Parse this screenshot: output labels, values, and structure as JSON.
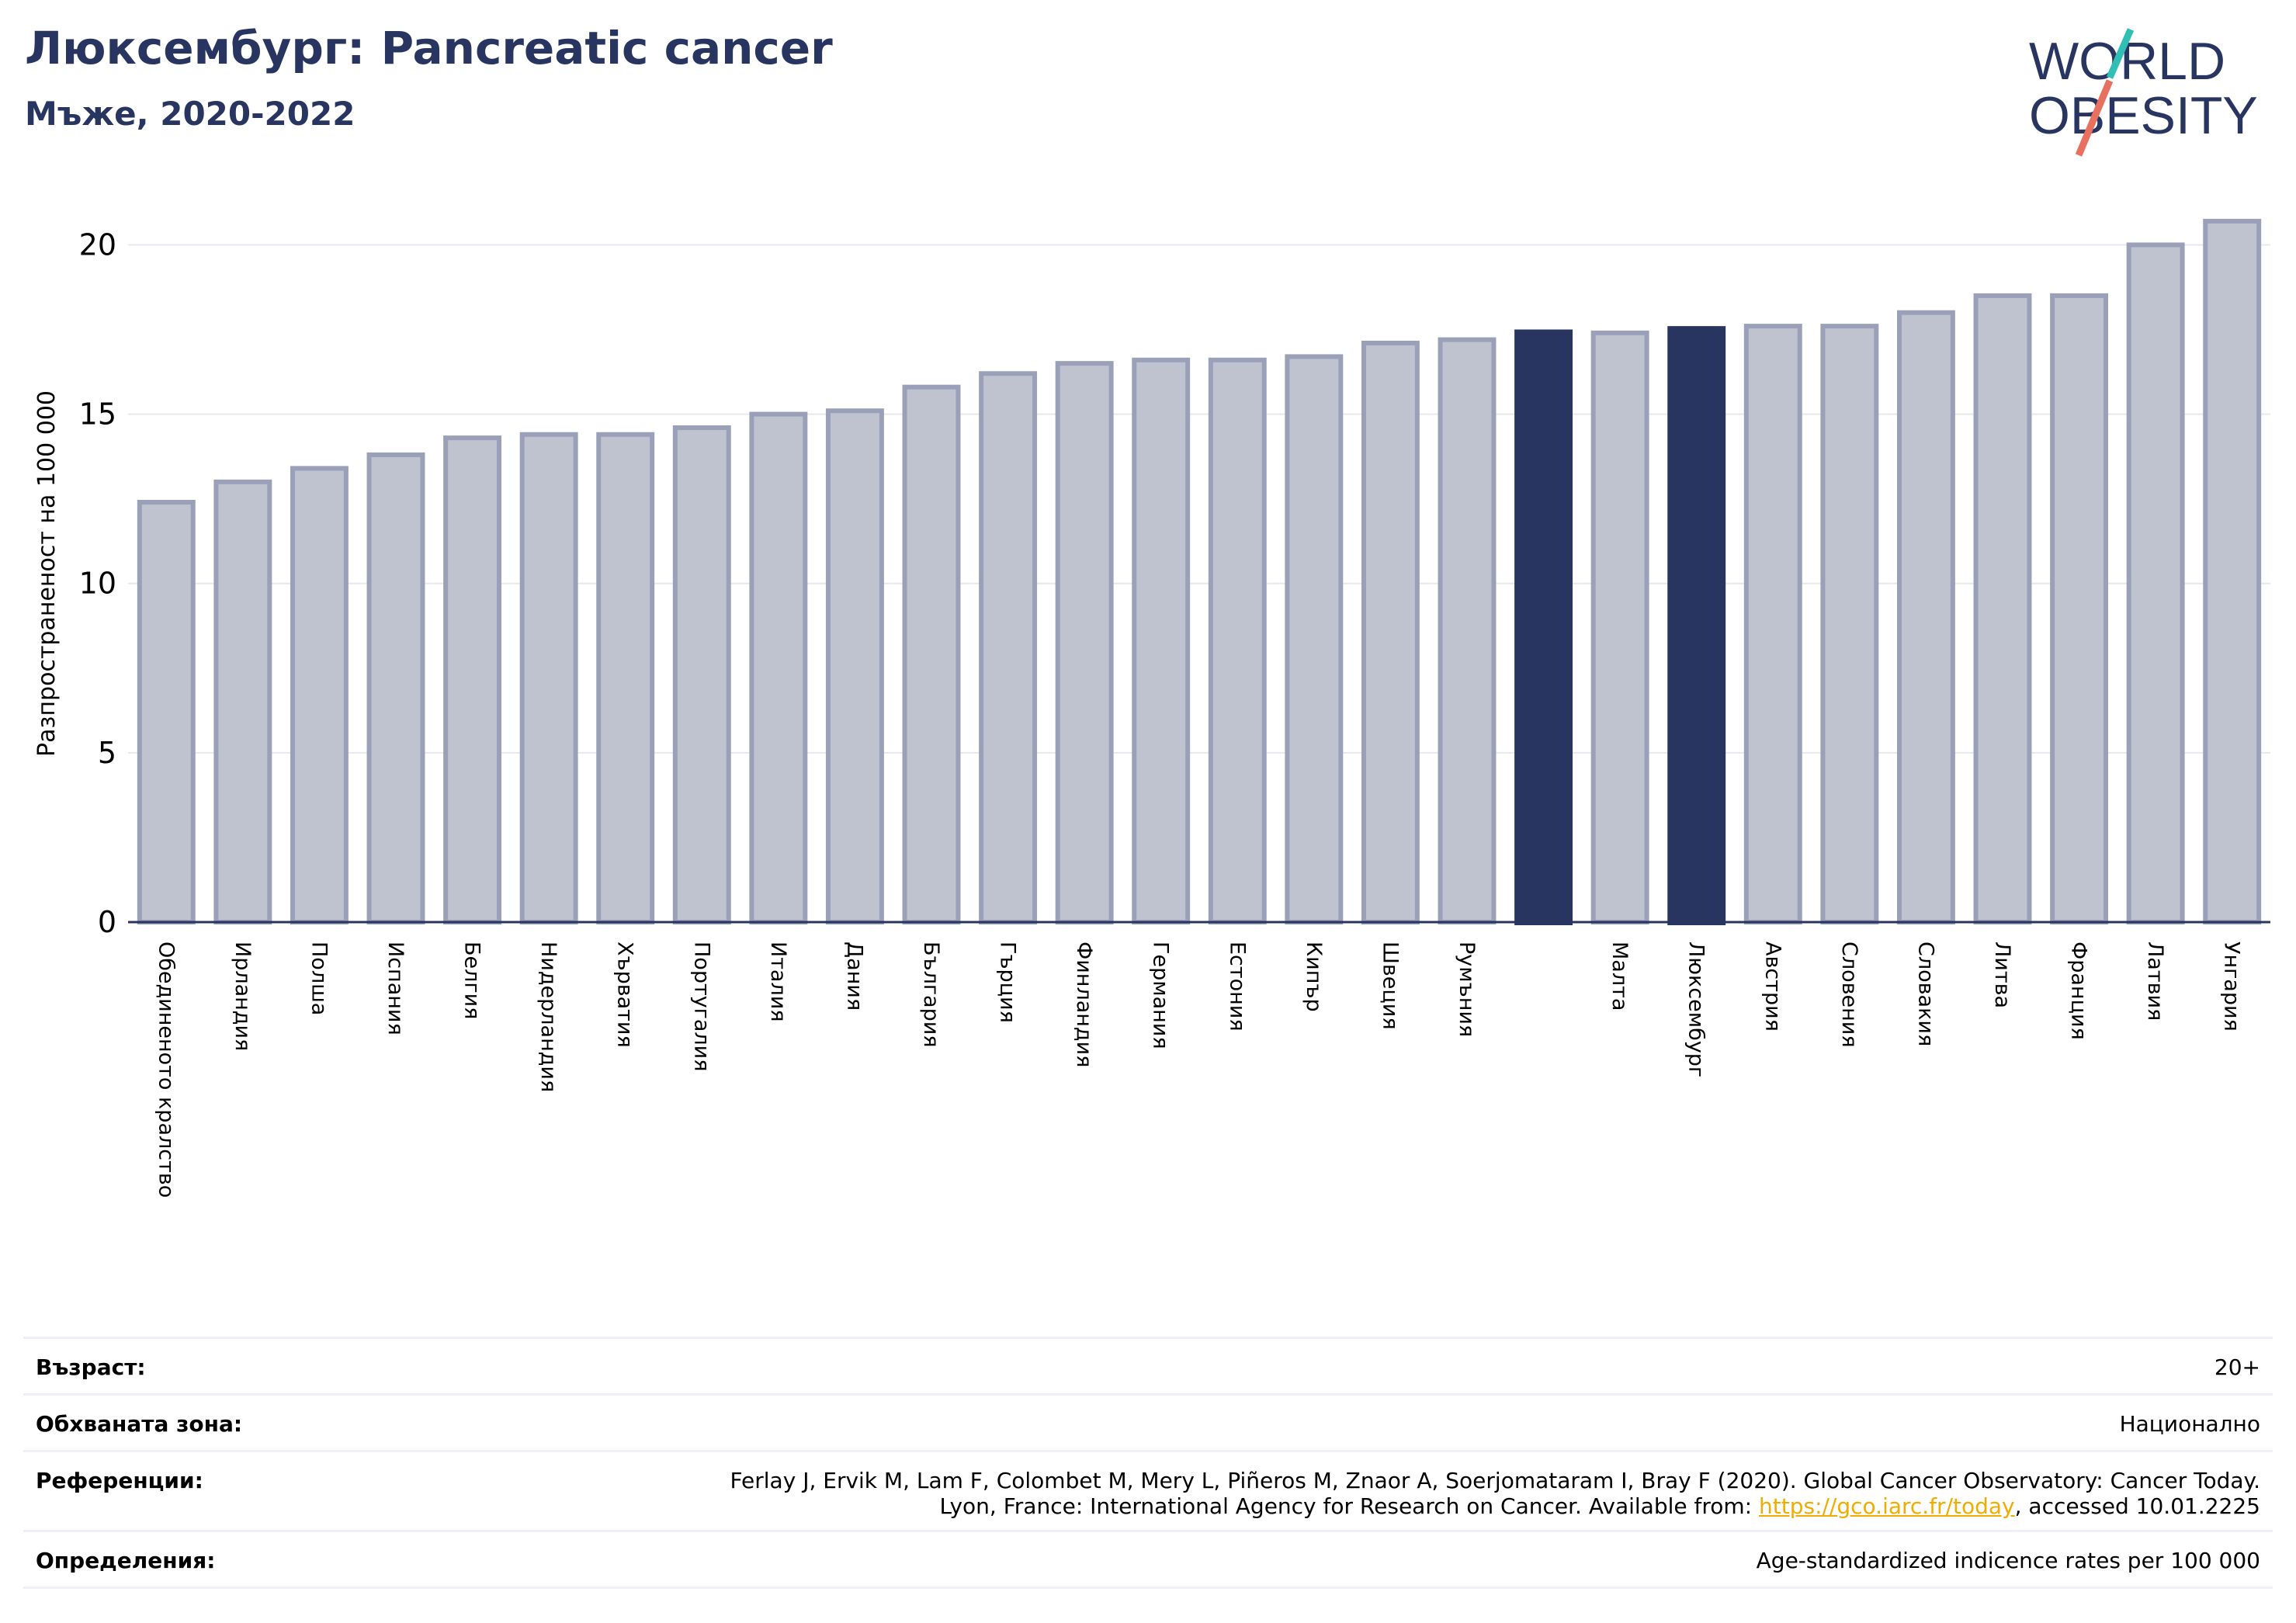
{
  "header": {
    "title": "Люксембург: Pancreatic cancer",
    "subtitle": "Мъже, 2020-2022"
  },
  "logo": {
    "line1": "WORLD",
    "line2": "OBESITY",
    "accent_teal": "#2fbfb5",
    "accent_coral": "#e8705f",
    "text_color": "#283561"
  },
  "colors": {
    "bar": "#bfc2cf",
    "bar_border": "#9aa0b8",
    "highlight": "#283561",
    "grid": "#e6e8ef",
    "axis": "#283561"
  },
  "chart_data": {
    "type": "bar",
    "ylabel": "Разпространеност  на 100 000",
    "ylim": [
      0,
      21.5
    ],
    "yticks": [
      0,
      5,
      10,
      15,
      20
    ],
    "grid": true,
    "categories": [
      "Обединеното кралство",
      "Ирландия",
      "Полша",
      "Испания",
      "Белгия",
      "Нидерландия",
      "Хърватия",
      "Португалия",
      "Италия",
      "Дания",
      "България",
      "Гърция",
      "Финландия",
      "Германия",
      "Естония",
      "Кипър",
      "Швеция",
      "Румъния",
      "",
      "Малта",
      "Люксембург",
      "Австрия",
      "Словения",
      "Словакия",
      "Литва",
      "Франция",
      "Латвия",
      "Унгария"
    ],
    "values": [
      12.4,
      13.0,
      13.4,
      13.8,
      14.3,
      14.4,
      14.4,
      14.6,
      15.0,
      15.1,
      15.8,
      16.2,
      16.5,
      16.6,
      16.6,
      16.7,
      17.1,
      17.2,
      17.5,
      17.4,
      17.6,
      17.6,
      17.6,
      18.0,
      18.5,
      18.5,
      20.0,
      20.7
    ],
    "highlighted": [
      18,
      20
    ]
  },
  "info": {
    "age_label": "Възраст:",
    "age_value": "20+",
    "area_label": "Обхваната зона:",
    "area_value": "Национално",
    "refs_label": "Референции:",
    "refs_line1": "Ferlay J, Ervik M, Lam F, Colombet M, Mery L, Piñeros M, Znaor A, Soerjomataram I, Bray F (2020). Global Cancer Observatory: Cancer Today.",
    "refs_line2_pre": "Lyon, France: International Agency for Research on Cancer. Available from: ",
    "refs_link": "https://gco.iarc.fr/today",
    "refs_line2_post": ", accessed 10.01.2225",
    "def_label": "Определения:",
    "def_value": "Age-standardized indicence rates per 100 000"
  }
}
